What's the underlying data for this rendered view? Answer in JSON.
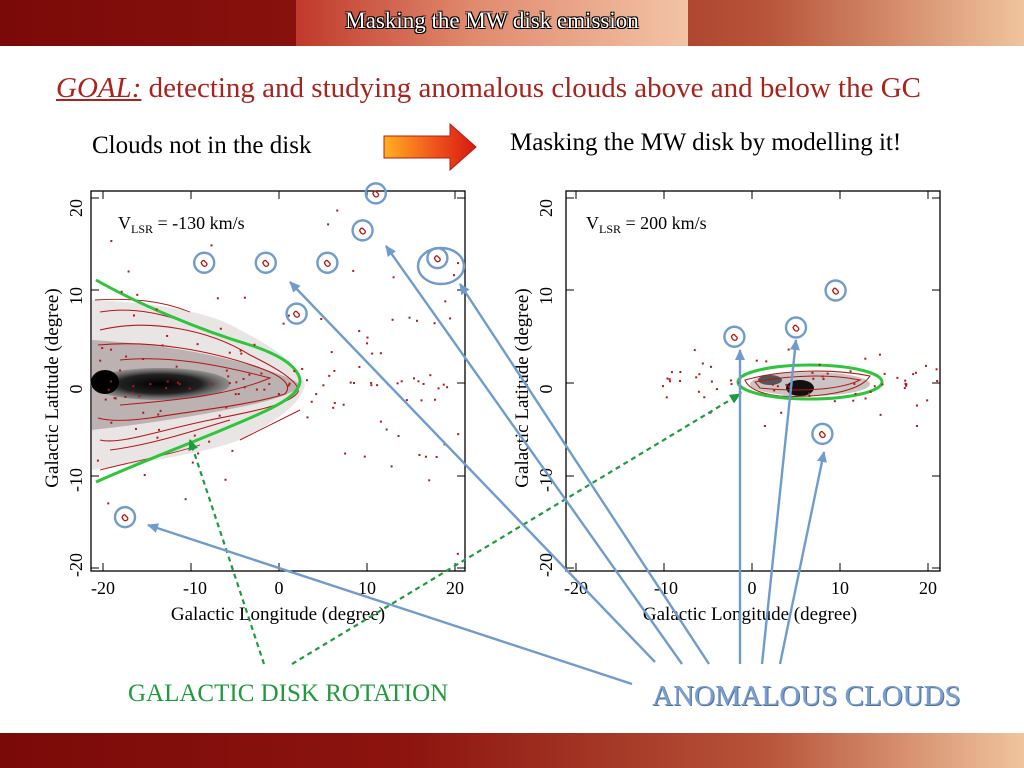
{
  "header": {
    "title": "Masking the MW disk emission"
  },
  "goal": {
    "key": "GOAL:",
    "text": " detecting and studying anomalous clouds above and below the GC"
  },
  "subtitles": {
    "left": "Clouds not in the disk",
    "right": "Masking the MW disk by modelling it!"
  },
  "panels": [
    {
      "velocity_label": "V",
      "velocity_sub": "LSR",
      "velocity_value": " = -130 km/s",
      "xlabel": "Galactic Longitude (degree)",
      "ylabel": "Galactic Latitude (degree)",
      "x_ticks": [
        "-20",
        "-10",
        "0",
        "10",
        "20"
      ],
      "y_ticks": [
        "20",
        "10",
        "0",
        "-10",
        "-20"
      ]
    },
    {
      "velocity_label": "V",
      "velocity_sub": "LSR",
      "velocity_value": " = 200 km/s",
      "xlabel": "Galactic Longitude (degree)",
      "ylabel": "Galactic Latitude (degree)",
      "x_ticks": [
        "-20",
        "-10",
        "0",
        "10",
        "20"
      ],
      "y_ticks": [
        "20",
        "10",
        "0",
        "-10",
        "-20"
      ]
    }
  ],
  "annotations": {
    "rotation": "GALACTIC DISK ROTATION",
    "anomalous": "ANOMALOUS CLOUDS"
  },
  "colors": {
    "brand_dark_red": "#7a0a08",
    "goal_text": "#a8231d",
    "contour": "#b01818",
    "disk_model": "#2fc43d",
    "rotation_arrow": "#1f9a3c",
    "anomalous_arrow": "#6f9bcd"
  },
  "clouds": {
    "left": [
      [
        -8.5,
        13
      ],
      [
        -1.5,
        13
      ],
      [
        2,
        7.5
      ],
      [
        5.5,
        13
      ],
      [
        9.5,
        16.5
      ],
      [
        11,
        20.5
      ],
      [
        18,
        13.5
      ],
      [
        -17.5,
        -14.5
      ]
    ],
    "right": [
      [
        -2,
        5
      ],
      [
        5,
        6
      ],
      [
        9.5,
        10
      ],
      [
        8,
        -5.5
      ]
    ]
  }
}
